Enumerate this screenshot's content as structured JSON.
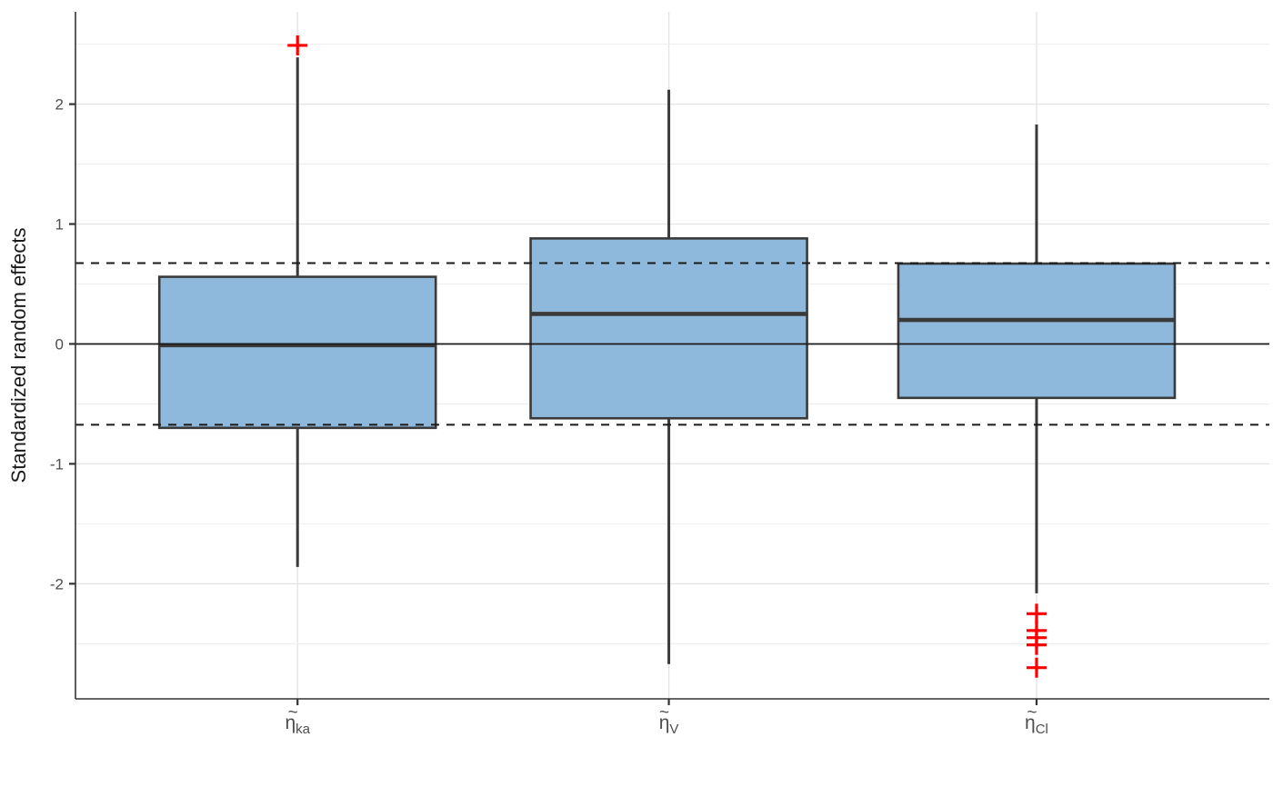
{
  "figure": {
    "title": "",
    "ylabel": "Standardized random effects"
  },
  "chart_data": {
    "type": "boxplot",
    "title": "",
    "xlabel": "",
    "ylabel": "Standardized random effects",
    "ylim": [
      -2.96,
      2.77
    ],
    "yticks": [
      -2,
      -1,
      0,
      1,
      2
    ],
    "ytick_labels": [
      "-2",
      "-1",
      "0",
      "1",
      "2"
    ],
    "minor_gridlines": [
      -2.5,
      -1.5,
      -0.5,
      0.5,
      1.5,
      2.5
    ],
    "reference_lines": {
      "solid": [
        0
      ],
      "dashed": [
        0.674,
        -0.674
      ]
    },
    "grid": "horizontal major+minor light gray, vertical light gray at each category",
    "legend": "none",
    "categories": [
      {
        "symbol": "η",
        "tilde": "~",
        "subscript": "ka"
      },
      {
        "symbol": "η",
        "tilde": "~",
        "subscript": "V"
      },
      {
        "symbol": "η",
        "tilde": "~",
        "subscript": "Cl"
      }
    ],
    "boxes": [
      {
        "name": "eta_ka",
        "q1": -0.7,
        "median": -0.01,
        "q3": 0.56,
        "whisker_low": -1.86,
        "whisker_high": 2.39,
        "outliers": [
          2.49
        ]
      },
      {
        "name": "eta_V",
        "q1": -0.62,
        "median": 0.25,
        "q3": 0.88,
        "whisker_low": -2.67,
        "whisker_high": 2.12,
        "outliers": []
      },
      {
        "name": "eta_Cl",
        "q1": -0.45,
        "median": 0.2,
        "q3": 0.67,
        "whisker_low": -2.08,
        "whisker_high": 1.83,
        "outliers": [
          -2.25,
          -2.39,
          -2.45,
          -2.51,
          -2.7
        ]
      }
    ],
    "colors": {
      "box_fill": "#8FB9DC",
      "box_border": "#3A3A3A",
      "median_line": "#3A3A3A",
      "whisker": "#3A3A3A",
      "outlier": "#FF0000",
      "gridline_major": "#E3E3E3",
      "gridline_minor": "#EDEDED",
      "axis_line": "#333333",
      "tick_mark": "#333333",
      "tick_label": "#4D4D4D",
      "axis_title": "#1A1A1A",
      "reference_line": "#1A1A1A",
      "background": "#FFFFFF"
    }
  }
}
